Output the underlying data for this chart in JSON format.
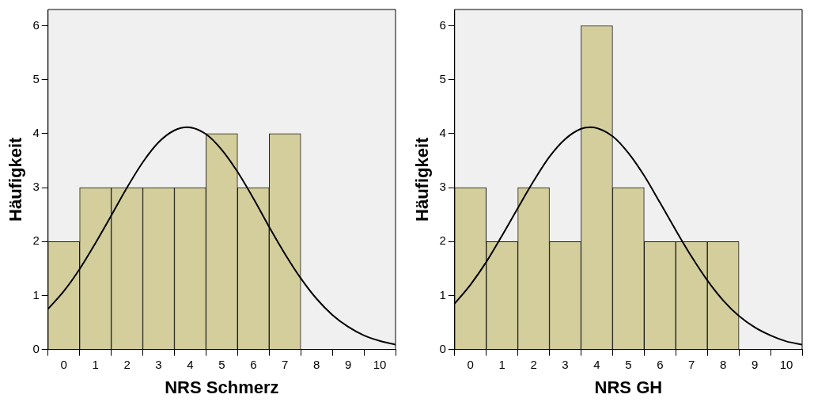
{
  "chart_data": [
    {
      "type": "histogram",
      "xlabel": "NRS Schmerz",
      "ylabel": "Häufigkeit",
      "xlim": [
        -0.5,
        10.5
      ],
      "xticks": [
        0,
        1,
        2,
        3,
        4,
        5,
        6,
        7,
        8,
        9,
        10
      ],
      "ylim": [
        0,
        6.3
      ],
      "yticks": [
        0,
        1,
        2,
        3,
        4,
        5,
        6
      ],
      "grid": false,
      "series": [
        {
          "bins": [
            -0.5,
            0.5,
            1.5,
            2.5,
            3.5,
            4.5,
            5.5,
            6.5,
            7.5
          ],
          "values": [
            2,
            3,
            3,
            3,
            3,
            4,
            3,
            4
          ],
          "color": "#d3ce9c"
        },
        {
          "type": "line",
          "x": [
            -0.5,
            0,
            0.5,
            1,
            1.5,
            2,
            2.5,
            3,
            3.5,
            3.9,
            4.5,
            5,
            5.5,
            6,
            6.5,
            7,
            7.5,
            8,
            8.5,
            9,
            9.5,
            10,
            10.5
          ],
          "values": [
            0.75,
            1.08,
            1.49,
            1.97,
            2.48,
            3.0,
            3.47,
            3.84,
            4.06,
            4.12,
            3.99,
            3.7,
            3.29,
            2.8,
            2.27,
            1.77,
            1.32,
            0.94,
            0.64,
            0.42,
            0.26,
            0.16,
            0.09
          ],
          "color": "#000000"
        }
      ]
    },
    {
      "type": "histogram",
      "xlabel": "NRS GH",
      "ylabel": "Häufigkeit",
      "xlim": [
        -0.5,
        10.5
      ],
      "xticks": [
        0,
        1,
        2,
        3,
        4,
        5,
        6,
        7,
        8,
        9,
        10
      ],
      "ylim": [
        0,
        6.3
      ],
      "yticks": [
        0,
        1,
        2,
        3,
        4,
        5,
        6
      ],
      "grid": false,
      "series": [
        {
          "bins": [
            -0.5,
            0.5,
            1.5,
            2.5,
            3.5,
            4.5,
            5.5,
            6.5,
            7.5,
            8.5
          ],
          "values": [
            3,
            2,
            3,
            2,
            6,
            3,
            2,
            2,
            2
          ],
          "color": "#d3ce9c"
        },
        {
          "type": "line",
          "x": [
            -0.5,
            0,
            0.5,
            1,
            1.5,
            2,
            2.5,
            3,
            3.5,
            3.8,
            4.5,
            5,
            5.5,
            6,
            6.5,
            7,
            7.5,
            8,
            8.5,
            9,
            9.5,
            10,
            10.5
          ],
          "values": [
            0.85,
            1.2,
            1.62,
            2.11,
            2.62,
            3.12,
            3.57,
            3.9,
            4.09,
            4.12,
            3.95,
            3.64,
            3.22,
            2.72,
            2.21,
            1.72,
            1.28,
            0.91,
            0.62,
            0.41,
            0.26,
            0.15,
            0.09
          ],
          "color": "#000000"
        }
      ]
    }
  ]
}
